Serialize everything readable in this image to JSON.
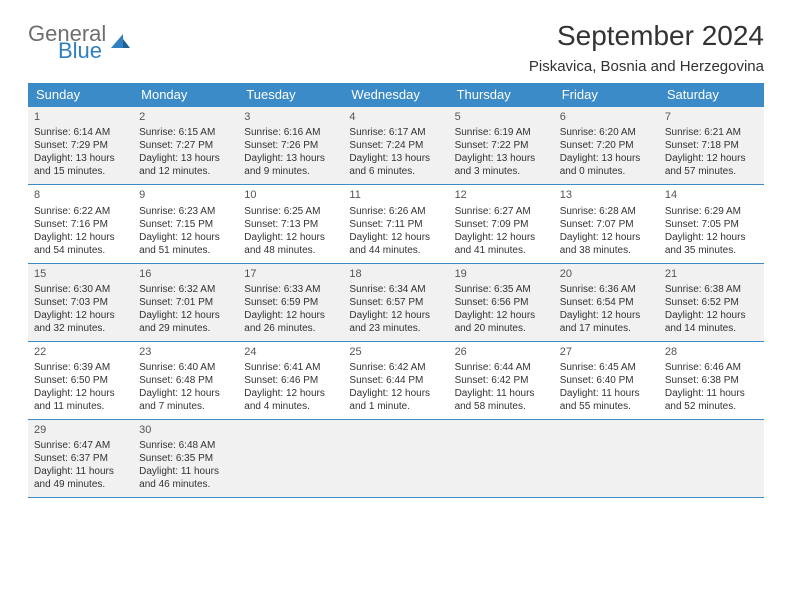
{
  "logo": {
    "general": "General",
    "blue": "Blue"
  },
  "title": "September 2024",
  "location": "Piskavica, Bosnia and Herzegovina",
  "colors": {
    "header_bg": "#3b8bc9",
    "header_text": "#ffffff",
    "shaded_bg": "#f1f1f1",
    "border": "#3b8bc9",
    "logo_gray": "#6e6e6e",
    "logo_blue": "#2f7fc1",
    "text": "#333333"
  },
  "day_names": [
    "Sunday",
    "Monday",
    "Tuesday",
    "Wednesday",
    "Thursday",
    "Friday",
    "Saturday"
  ],
  "weeks": [
    {
      "shaded": true,
      "cells": [
        {
          "n": "1",
          "sr": "Sunrise: 6:14 AM",
          "ss": "Sunset: 7:29 PM",
          "dl": "Daylight: 13 hours and 15 minutes."
        },
        {
          "n": "2",
          "sr": "Sunrise: 6:15 AM",
          "ss": "Sunset: 7:27 PM",
          "dl": "Daylight: 13 hours and 12 minutes."
        },
        {
          "n": "3",
          "sr": "Sunrise: 6:16 AM",
          "ss": "Sunset: 7:26 PM",
          "dl": "Daylight: 13 hours and 9 minutes."
        },
        {
          "n": "4",
          "sr": "Sunrise: 6:17 AM",
          "ss": "Sunset: 7:24 PM",
          "dl": "Daylight: 13 hours and 6 minutes."
        },
        {
          "n": "5",
          "sr": "Sunrise: 6:19 AM",
          "ss": "Sunset: 7:22 PM",
          "dl": "Daylight: 13 hours and 3 minutes."
        },
        {
          "n": "6",
          "sr": "Sunrise: 6:20 AM",
          "ss": "Sunset: 7:20 PM",
          "dl": "Daylight: 13 hours and 0 minutes."
        },
        {
          "n": "7",
          "sr": "Sunrise: 6:21 AM",
          "ss": "Sunset: 7:18 PM",
          "dl": "Daylight: 12 hours and 57 minutes."
        }
      ]
    },
    {
      "shaded": false,
      "cells": [
        {
          "n": "8",
          "sr": "Sunrise: 6:22 AM",
          "ss": "Sunset: 7:16 PM",
          "dl": "Daylight: 12 hours and 54 minutes."
        },
        {
          "n": "9",
          "sr": "Sunrise: 6:23 AM",
          "ss": "Sunset: 7:15 PM",
          "dl": "Daylight: 12 hours and 51 minutes."
        },
        {
          "n": "10",
          "sr": "Sunrise: 6:25 AM",
          "ss": "Sunset: 7:13 PM",
          "dl": "Daylight: 12 hours and 48 minutes."
        },
        {
          "n": "11",
          "sr": "Sunrise: 6:26 AM",
          "ss": "Sunset: 7:11 PM",
          "dl": "Daylight: 12 hours and 44 minutes."
        },
        {
          "n": "12",
          "sr": "Sunrise: 6:27 AM",
          "ss": "Sunset: 7:09 PM",
          "dl": "Daylight: 12 hours and 41 minutes."
        },
        {
          "n": "13",
          "sr": "Sunrise: 6:28 AM",
          "ss": "Sunset: 7:07 PM",
          "dl": "Daylight: 12 hours and 38 minutes."
        },
        {
          "n": "14",
          "sr": "Sunrise: 6:29 AM",
          "ss": "Sunset: 7:05 PM",
          "dl": "Daylight: 12 hours and 35 minutes."
        }
      ]
    },
    {
      "shaded": true,
      "cells": [
        {
          "n": "15",
          "sr": "Sunrise: 6:30 AM",
          "ss": "Sunset: 7:03 PM",
          "dl": "Daylight: 12 hours and 32 minutes."
        },
        {
          "n": "16",
          "sr": "Sunrise: 6:32 AM",
          "ss": "Sunset: 7:01 PM",
          "dl": "Daylight: 12 hours and 29 minutes."
        },
        {
          "n": "17",
          "sr": "Sunrise: 6:33 AM",
          "ss": "Sunset: 6:59 PM",
          "dl": "Daylight: 12 hours and 26 minutes."
        },
        {
          "n": "18",
          "sr": "Sunrise: 6:34 AM",
          "ss": "Sunset: 6:57 PM",
          "dl": "Daylight: 12 hours and 23 minutes."
        },
        {
          "n": "19",
          "sr": "Sunrise: 6:35 AM",
          "ss": "Sunset: 6:56 PM",
          "dl": "Daylight: 12 hours and 20 minutes."
        },
        {
          "n": "20",
          "sr": "Sunrise: 6:36 AM",
          "ss": "Sunset: 6:54 PM",
          "dl": "Daylight: 12 hours and 17 minutes."
        },
        {
          "n": "21",
          "sr": "Sunrise: 6:38 AM",
          "ss": "Sunset: 6:52 PM",
          "dl": "Daylight: 12 hours and 14 minutes."
        }
      ]
    },
    {
      "shaded": false,
      "cells": [
        {
          "n": "22",
          "sr": "Sunrise: 6:39 AM",
          "ss": "Sunset: 6:50 PM",
          "dl": "Daylight: 12 hours and 11 minutes."
        },
        {
          "n": "23",
          "sr": "Sunrise: 6:40 AM",
          "ss": "Sunset: 6:48 PM",
          "dl": "Daylight: 12 hours and 7 minutes."
        },
        {
          "n": "24",
          "sr": "Sunrise: 6:41 AM",
          "ss": "Sunset: 6:46 PM",
          "dl": "Daylight: 12 hours and 4 minutes."
        },
        {
          "n": "25",
          "sr": "Sunrise: 6:42 AM",
          "ss": "Sunset: 6:44 PM",
          "dl": "Daylight: 12 hours and 1 minute."
        },
        {
          "n": "26",
          "sr": "Sunrise: 6:44 AM",
          "ss": "Sunset: 6:42 PM",
          "dl": "Daylight: 11 hours and 58 minutes."
        },
        {
          "n": "27",
          "sr": "Sunrise: 6:45 AM",
          "ss": "Sunset: 6:40 PM",
          "dl": "Daylight: 11 hours and 55 minutes."
        },
        {
          "n": "28",
          "sr": "Sunrise: 6:46 AM",
          "ss": "Sunset: 6:38 PM",
          "dl": "Daylight: 11 hours and 52 minutes."
        }
      ]
    },
    {
      "shaded": true,
      "cells": [
        {
          "n": "29",
          "sr": "Sunrise: 6:47 AM",
          "ss": "Sunset: 6:37 PM",
          "dl": "Daylight: 11 hours and 49 minutes."
        },
        {
          "n": "30",
          "sr": "Sunrise: 6:48 AM",
          "ss": "Sunset: 6:35 PM",
          "dl": "Daylight: 11 hours and 46 minutes."
        },
        {
          "empty": true
        },
        {
          "empty": true
        },
        {
          "empty": true
        },
        {
          "empty": true
        },
        {
          "empty": true
        }
      ]
    }
  ]
}
